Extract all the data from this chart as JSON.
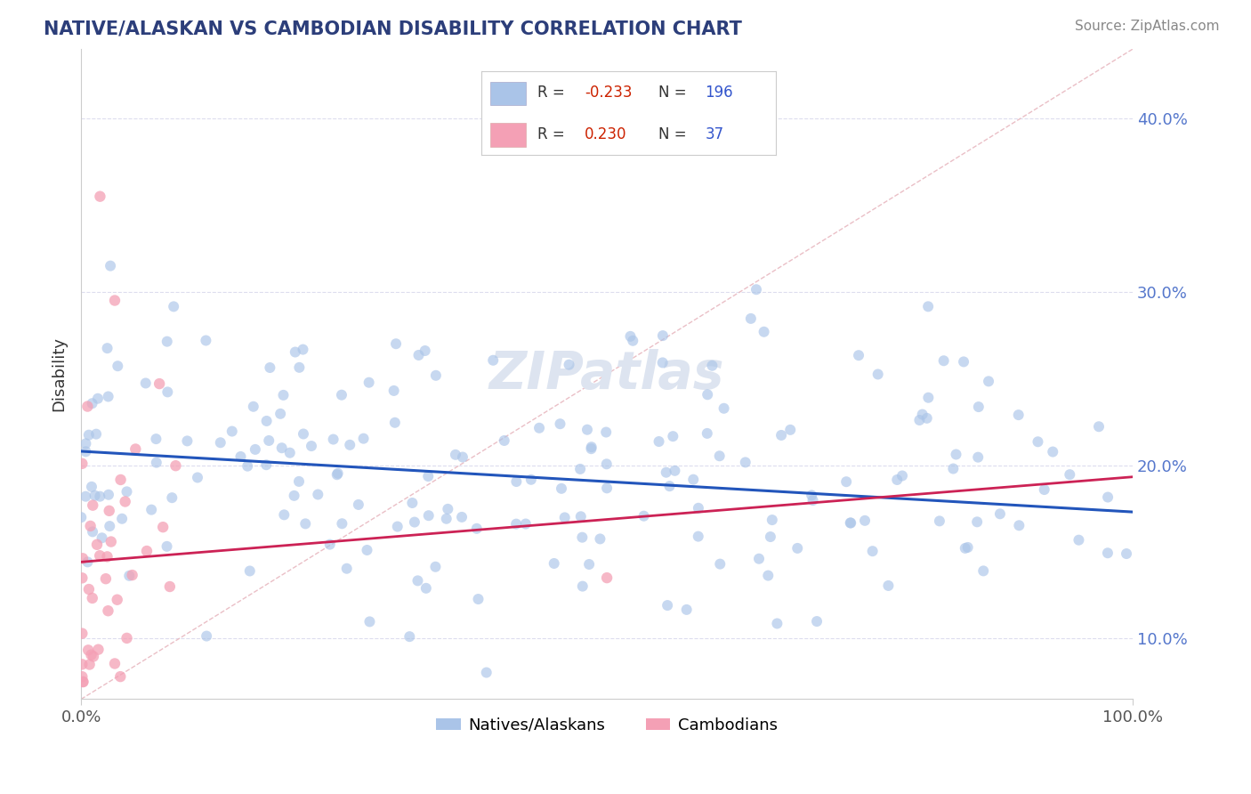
{
  "title": "NATIVE/ALASKAN VS CAMBODIAN DISABILITY CORRELATION CHART",
  "source": "Source: ZipAtlas.com",
  "ylabel": "Disability",
  "y_ticks": [
    0.1,
    0.2,
    0.3,
    0.4
  ],
  "y_tick_labels": [
    "10.0%",
    "20.0%",
    "30.0%",
    "40.0%"
  ],
  "xlim": [
    0.0,
    1.0
  ],
  "ylim": [
    0.065,
    0.44
  ],
  "blue_R": -0.233,
  "blue_N": 196,
  "pink_R": 0.23,
  "pink_N": 37,
  "legend_label_blue": "Natives/Alaskans",
  "legend_label_pink": "Cambodians",
  "blue_color": "#aac4e8",
  "pink_color": "#f4a0b5",
  "blue_line_color": "#2255bb",
  "pink_line_color": "#cc2255",
  "diag_line_color": "#e8b8c0",
  "title_color": "#2c3e7a",
  "source_color": "#888888",
  "legend_R_neg_color": "#cc2200",
  "legend_R_pos_color": "#cc2200",
  "legend_N_color": "#3355cc",
  "legend_text_color": "#333333",
  "background_color": "#ffffff",
  "watermark_color": "#dde4f0",
  "blue_trend_start": 0.208,
  "blue_trend_end": 0.173,
  "pink_trend_start": 0.127,
  "pink_trend_end": 0.205
}
